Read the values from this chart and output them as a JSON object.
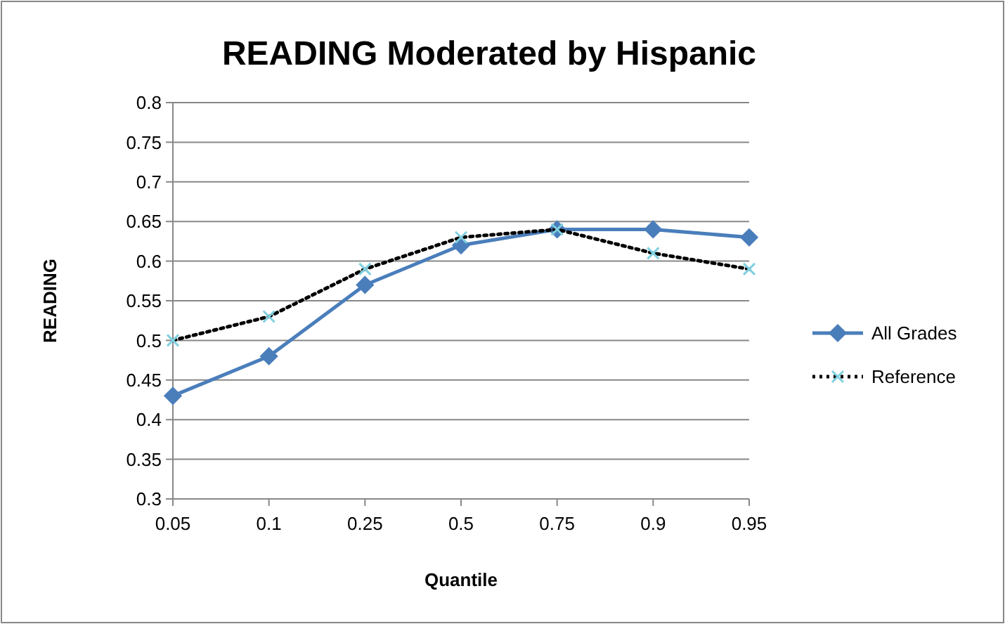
{
  "chart_data": {
    "type": "line",
    "title": "READING Moderated by Hispanic",
    "xlabel": "Quantile",
    "ylabel": "READING",
    "categories": [
      "0.05",
      "0.1",
      "0.25",
      "0.5",
      "0.75",
      "0.9",
      "0.95"
    ],
    "series": [
      {
        "name": "All Grades",
        "color": "#4a7ebb",
        "values": [
          0.43,
          0.48,
          0.57,
          0.62,
          0.64,
          0.64,
          0.63
        ],
        "marker": "diamond",
        "line_style": "solid"
      },
      {
        "name": "Reference",
        "color": "#000000",
        "values": [
          0.5,
          0.53,
          0.59,
          0.63,
          0.64,
          0.61,
          0.59
        ],
        "marker": "cross",
        "line_style": "dotted"
      }
    ],
    "ylim": [
      0.3,
      0.8
    ],
    "yticks": [
      0.3,
      0.35,
      0.4,
      0.45,
      0.5,
      0.55,
      0.6,
      0.65,
      0.7,
      0.75,
      0.8
    ],
    "grid": "y",
    "legend": "right"
  }
}
